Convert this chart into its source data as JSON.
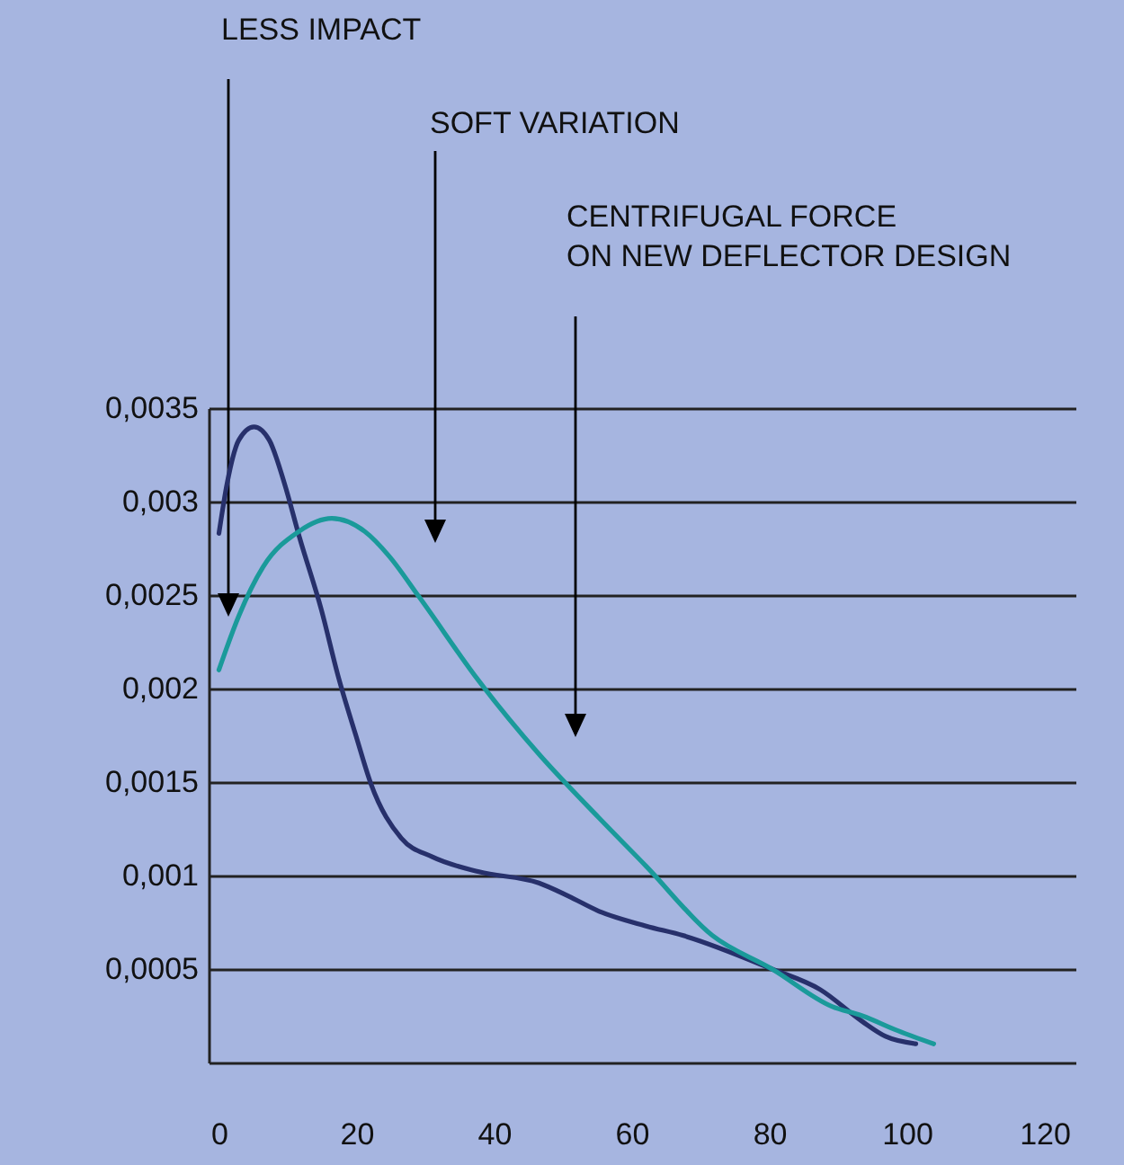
{
  "chart_data": {
    "type": "line",
    "xlim": [
      -1.5,
      124.5
    ],
    "ylim": [
      0,
      0.0035
    ],
    "xticks": [
      0,
      20,
      40,
      60,
      80,
      100,
      120
    ],
    "yticks": [
      {
        "value": 0.0005,
        "label": "0,0005"
      },
      {
        "value": 0.001,
        "label": "0,001"
      },
      {
        "value": 0.0015,
        "label": "0,0015"
      },
      {
        "value": 0.002,
        "label": "0,002"
      },
      {
        "value": 0.0025,
        "label": "0,0025"
      },
      {
        "value": 0.003,
        "label": "0,003"
      },
      {
        "value": 0.0035,
        "label": "0,0035"
      }
    ],
    "grid": "y",
    "annotations": [
      "LESS IMPACT",
      "SOFT VARIATION",
      "CENTRIFUGAL FORCE\nON NEW DEFLECTOR DESIGN"
    ],
    "series": [
      {
        "color": "#27306b",
        "x": [
          0,
          1.2,
          2.9,
          5.1,
          7.3,
          9.5,
          11.7,
          14.9,
          17.3,
          19.9,
          22.1,
          26.5,
          31,
          37.8,
          46.5,
          50.8,
          55.2,
          62.1,
          67.4,
          80.4,
          87.4,
          93.5,
          96.9,
          101.3
        ],
        "values": [
          0.00283,
          0.0031,
          0.00333,
          0.0034,
          0.00333,
          0.0031,
          0.00281,
          0.00242,
          0.00207,
          0.00175,
          0.00149,
          0.0012,
          0.0011,
          0.00102,
          0.00096,
          0.00089,
          0.00081,
          0.00073,
          0.00068,
          0.0005,
          0.00039,
          0.00022,
          0.00014,
          0.0001
        ]
      },
      {
        "color": "#1a9a9a",
        "x": [
          0,
          2.9,
          6.4,
          11.6,
          16.4,
          21.2,
          24.7,
          29.1,
          37.8,
          46.5,
          55.2,
          62.1,
          71.7,
          80.4,
          89.1,
          93.5,
          98.7,
          103.9
        ],
        "values": [
          0.0021,
          0.00239,
          0.00265,
          0.00284,
          0.00291,
          0.00284,
          0.00271,
          0.00249,
          0.00204,
          0.00165,
          0.00131,
          0.00105,
          0.00068,
          0.0005,
          0.0003,
          0.00025,
          0.00017,
          0.0001
        ]
      }
    ]
  }
}
